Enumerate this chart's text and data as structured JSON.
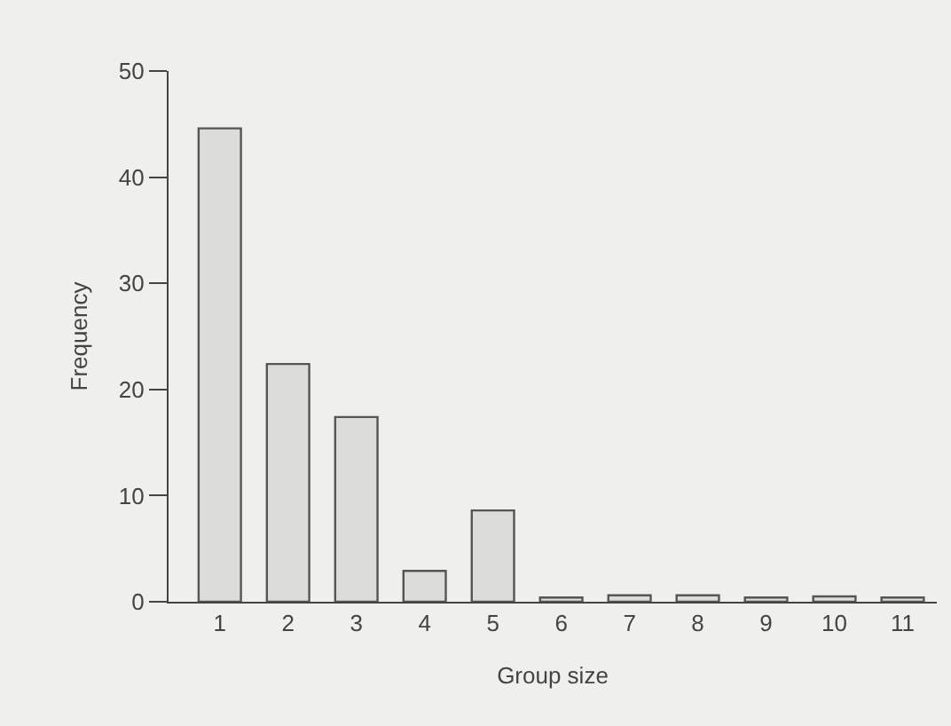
{
  "chart_data": {
    "type": "bar",
    "xlabel": "Group size",
    "ylabel": "Frequency",
    "categories": [
      "1",
      "2",
      "3",
      "4",
      "5",
      "6",
      "7",
      "8",
      "9",
      "10",
      "11"
    ],
    "values": [
      44.6,
      22.4,
      17.4,
      2.9,
      8.6,
      0.4,
      0.6,
      0.6,
      0.4,
      0.5,
      0.4
    ],
    "color": "#dcdcd8",
    "ylim": [
      0,
      50
    ],
    "yticks": [
      0,
      10,
      20,
      30,
      40,
      50
    ],
    "grid": false,
    "legend": false
  }
}
